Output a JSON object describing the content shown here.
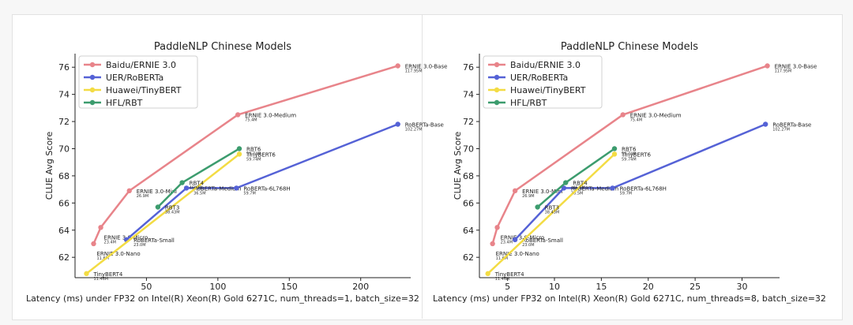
{
  "colors": {
    "baidu": "#e8848a",
    "uer": "#5562d6",
    "huawei": "#f3dc44",
    "hfl": "#3c9c6e"
  },
  "chart_data": [
    {
      "type": "line",
      "title": "PaddleNLP Chinese Models",
      "xlabel": "Latency (ms) under FP32 on Intel(R) Xeon(R) Gold 6271C, num_threads=1, batch_size=32",
      "ylabel": "CLUE Avg Score",
      "xlim": [
        0,
        235
      ],
      "ylim": [
        60.5,
        77
      ],
      "xticks": [
        50,
        100,
        150,
        200
      ],
      "yticks": [
        62,
        64,
        66,
        68,
        70,
        72,
        74,
        76
      ],
      "legend": "top-left",
      "series": [
        {
          "name": "Baidu/ERNIE 3.0",
          "color": "baidu",
          "points": [
            {
              "x": 13,
              "y": 63.0,
              "label": "ERNIE 3.0-Nano",
              "sub": "11.6M",
              "pos": "below"
            },
            {
              "x": 18,
              "y": 64.2,
              "label": "ERNIE 3.0-Micro",
              "sub": "23.4M",
              "pos": "below"
            },
            {
              "x": 38,
              "y": 66.9,
              "label": "ERNIE 3.0-Mini",
              "sub": "26.9M",
              "pos": "right"
            },
            {
              "x": 114,
              "y": 72.5,
              "label": "ERNIE 3.0-Medium",
              "sub": "75.4M",
              "pos": "right"
            },
            {
              "x": 226,
              "y": 76.1,
              "label": "ERNIE 3.0-Base",
              "sub": "117.95M",
              "pos": "right"
            }
          ]
        },
        {
          "name": "UER/RoBERTa",
          "color": "uer",
          "points": [
            {
              "x": 36,
              "y": 63.3,
              "label": "RoBERTa-Small",
              "sub": "23.0M",
              "pos": "right"
            },
            {
              "x": 78,
              "y": 67.1,
              "label": "RoBERTa-Medium",
              "sub": "36.5M",
              "pos": "right"
            },
            {
              "x": 113,
              "y": 67.1,
              "label": "RoBERTa-6L768H",
              "sub": "59.7M",
              "pos": "right"
            },
            {
              "x": 226,
              "y": 71.8,
              "label": "RoBERTa-Base",
              "sub": "102.27M",
              "pos": "right"
            }
          ]
        },
        {
          "name": "Huawei/TinyBERT",
          "color": "huawei",
          "points": [
            {
              "x": 8,
              "y": 60.8,
              "label": "TinyBERT4",
              "sub": "11.46M",
              "pos": "right"
            },
            {
              "x": 115,
              "y": 69.6,
              "label": "TinyBERT6",
              "sub": "59.74M",
              "pos": "right"
            }
          ]
        },
        {
          "name": "HFL/RBT",
          "color": "hfl",
          "points": [
            {
              "x": 58,
              "y": 65.7,
              "label": "RBT3",
              "sub": "38.43M",
              "pos": "right"
            },
            {
              "x": 75,
              "y": 67.5,
              "label": "RBT4",
              "sub": "46.6M",
              "pos": "right"
            },
            {
              "x": 115,
              "y": 70.0,
              "label": "RBT6",
              "sub": "59.74M",
              "pos": "right"
            }
          ]
        }
      ]
    },
    {
      "type": "line",
      "title": "PaddleNLP Chinese Models",
      "xlabel": "Latency (ms) under FP32 on Intel(R) Xeon(R) Gold 6271C, num_threads=8, batch_size=32",
      "ylabel": "CLUE Avg Score",
      "xlim": [
        2,
        34
      ],
      "ylim": [
        60.5,
        77
      ],
      "xticks": [
        5,
        10,
        15,
        20,
        25,
        30
      ],
      "yticks": [
        62,
        64,
        66,
        68,
        70,
        72,
        74,
        76
      ],
      "legend": "top-left",
      "series": [
        {
          "name": "Baidu/ERNIE 3.0",
          "color": "baidu",
          "points": [
            {
              "x": 3.4,
              "y": 63.0,
              "label": "ERNIE 3.0-Nano",
              "sub": "11.6M",
              "pos": "below"
            },
            {
              "x": 3.9,
              "y": 64.2,
              "label": "ERNIE 3.0-Micro",
              "sub": "23.4M",
              "pos": "below"
            },
            {
              "x": 5.8,
              "y": 66.9,
              "label": "ERNIE 3.0-Mini",
              "sub": "26.9M",
              "pos": "right"
            },
            {
              "x": 17.3,
              "y": 72.5,
              "label": "ERNIE 3.0-Medium",
              "sub": "75.4M",
              "pos": "right"
            },
            {
              "x": 32.7,
              "y": 76.1,
              "label": "ERNIE 3.0-Base",
              "sub": "117.95M",
              "pos": "right"
            }
          ]
        },
        {
          "name": "UER/RoBERTa",
          "color": "uer",
          "points": [
            {
              "x": 5.8,
              "y": 63.3,
              "label": "RoBERTa-Small",
              "sub": "23.0M",
              "pos": "right"
            },
            {
              "x": 11.0,
              "y": 67.1,
              "label": "RoBERTa-Medium",
              "sub": "36.5M",
              "pos": "right"
            },
            {
              "x": 16.2,
              "y": 67.1,
              "label": "RoBERTa-6L768H",
              "sub": "59.7M",
              "pos": "right"
            },
            {
              "x": 32.5,
              "y": 71.8,
              "label": "RoBERTa-Base",
              "sub": "102.27M",
              "pos": "right"
            }
          ]
        },
        {
          "name": "Huawei/TinyBERT",
          "color": "huawei",
          "points": [
            {
              "x": 2.9,
              "y": 60.8,
              "label": "TinyBERT4",
              "sub": "11.46M",
              "pos": "right"
            },
            {
              "x": 16.4,
              "y": 69.6,
              "label": "TinyBERT6",
              "sub": "59.74M",
              "pos": "right"
            }
          ]
        },
        {
          "name": "HFL/RBT",
          "color": "hfl",
          "points": [
            {
              "x": 8.2,
              "y": 65.7,
              "label": "RBT3",
              "sub": "38.43M",
              "pos": "right"
            },
            {
              "x": 11.2,
              "y": 67.5,
              "label": "RBT4",
              "sub": "46.6M",
              "pos": "right"
            },
            {
              "x": 16.4,
              "y": 70.0,
              "label": "RBT6",
              "sub": "59.74M",
              "pos": "right"
            }
          ]
        }
      ]
    }
  ]
}
